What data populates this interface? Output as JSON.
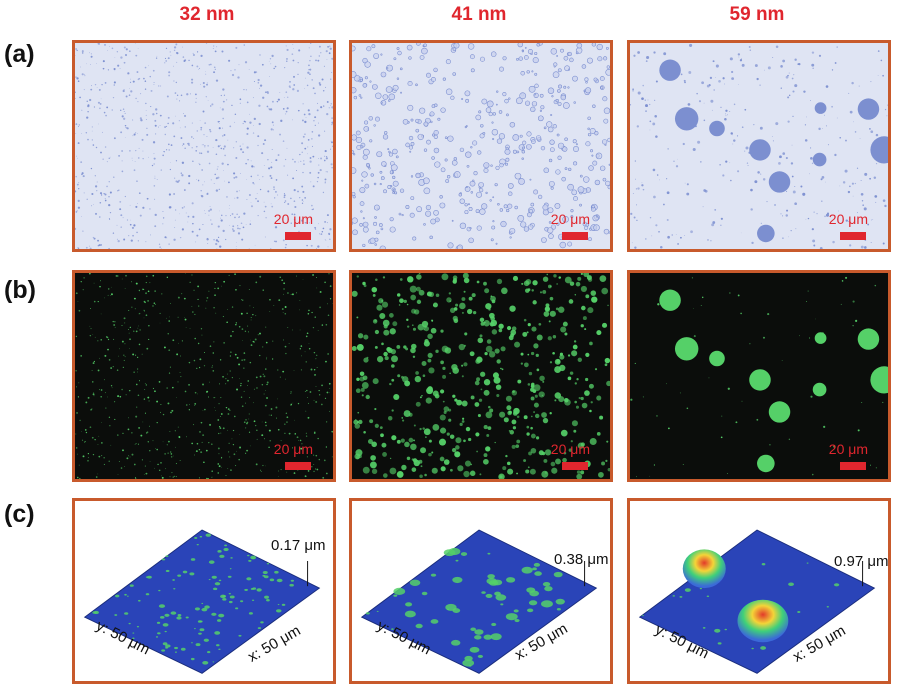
{
  "columns": [
    "32 nm",
    "41 nm",
    "59 nm"
  ],
  "rows": [
    "(a)",
    "(b)",
    "(c)"
  ],
  "scale_bar": "20 μm",
  "heights": [
    "0.17 μm",
    "0.38 μm",
    "0.97 μm"
  ],
  "axis_y": "y: 50 μm",
  "axis_x": "x: 50 μm",
  "colors": {
    "frame": "#c85a2c",
    "label_red": "#e0262e",
    "optical_bg": "#dfe4f3",
    "droplet_blue": "#7c8fd0",
    "fluor_bg": "#0b0d0b",
    "fluor_green": "#55d068",
    "afm_surface": "#2a44b8"
  }
}
